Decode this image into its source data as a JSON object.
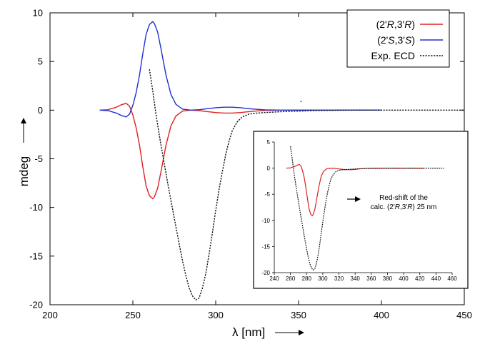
{
  "chart_data": [
    {
      "type": "line",
      "xlim": [
        200,
        450
      ],
      "ylim": [
        -20,
        10
      ],
      "xticks": [
        200,
        250,
        300,
        350,
        400,
        450
      ],
      "yticks": [
        10,
        5,
        0,
        -5,
        -10,
        -15,
        -20
      ],
      "xlabel": "λ [nm]",
      "ylabel": "mdeg",
      "grid": false,
      "legend": {
        "position": "top-right",
        "entries": [
          {
            "prefix": "(2'",
            "i1": "R",
            "mid": ",3'",
            "i2": "R",
            "suffix": ")",
            "color": "#e02020",
            "style": "solid"
          },
          {
            "prefix": "(2'",
            "i1": "S",
            "mid": ",3'",
            "i2": "S",
            "suffix": ")",
            "color": "#2030d0",
            "style": "solid"
          },
          {
            "text": "Exp. ECD",
            "color": "#111111",
            "style": "dotted"
          }
        ]
      },
      "series": [
        {
          "color": "#e02020",
          "style": "solid",
          "x": [
            230,
            235,
            240,
            243,
            246,
            248,
            250,
            252,
            254,
            256,
            258,
            260,
            262,
            263,
            265,
            267,
            270,
            273,
            276,
            280,
            285,
            290,
            295,
            300,
            305,
            310,
            315,
            320,
            325,
            330,
            340,
            360,
            400
          ],
          "y": [
            0,
            0.05,
            0.3,
            0.55,
            0.7,
            0.4,
            -0.5,
            -1.8,
            -3.6,
            -5.8,
            -7.8,
            -8.8,
            -9.1,
            -8.9,
            -8.0,
            -6.3,
            -3.6,
            -1.6,
            -0.6,
            -0.1,
            0,
            -0.05,
            -0.15,
            -0.25,
            -0.3,
            -0.3,
            -0.25,
            -0.15,
            -0.08,
            -0.03,
            0,
            0,
            0
          ]
        },
        {
          "color": "#2030d0",
          "style": "solid",
          "x": [
            230,
            235,
            240,
            243,
            246,
            248,
            250,
            252,
            254,
            256,
            258,
            260,
            262,
            263,
            265,
            267,
            270,
            273,
            276,
            280,
            285,
            290,
            295,
            300,
            305,
            310,
            315,
            320,
            325,
            330,
            340,
            360,
            400
          ],
          "y": [
            0,
            -0.05,
            -0.3,
            -0.55,
            -0.7,
            -0.4,
            0.5,
            1.8,
            3.6,
            5.8,
            7.8,
            8.8,
            9.1,
            8.9,
            8.0,
            6.3,
            3.6,
            1.6,
            0.6,
            0.1,
            0,
            0.05,
            0.15,
            0.25,
            0.3,
            0.3,
            0.25,
            0.15,
            0.08,
            0.03,
            0,
            0,
            0
          ]
        },
        {
          "color": "#111111",
          "style": "dotted",
          "x": [
            260,
            262,
            264,
            266,
            268,
            270,
            272,
            274,
            276,
            278,
            280,
            282,
            284,
            286,
            288,
            290,
            292,
            294,
            296,
            298,
            300,
            302,
            304,
            306,
            308,
            310,
            313,
            316,
            320,
            325,
            330,
            340,
            350,
            360,
            380,
            400,
            420,
            440,
            450
          ],
          "y": [
            4.2,
            2.0,
            -0.5,
            -2.6,
            -4.6,
            -6.5,
            -8.4,
            -10.2,
            -12.0,
            -13.8,
            -15.5,
            -17.0,
            -18.3,
            -19.1,
            -19.5,
            -19.3,
            -18.3,
            -16.8,
            -14.8,
            -12.6,
            -10.3,
            -8.2,
            -6.3,
            -4.6,
            -3.2,
            -2.1,
            -1.2,
            -0.7,
            -0.4,
            -0.3,
            -0.25,
            -0.15,
            -0.1,
            -0.05,
            0,
            0,
            0,
            0,
            0
          ]
        }
      ]
    },
    {
      "type": "line",
      "xlim": [
        240,
        460
      ],
      "ylim": [
        -20,
        5
      ],
      "xticks": [
        240,
        260,
        280,
        300,
        320,
        340,
        360,
        380,
        400,
        420,
        440,
        460
      ],
      "yticks": [
        5,
        0,
        -5,
        -10,
        -15,
        -20
      ],
      "grid": false,
      "annotation": {
        "line1": "Red-shift of the",
        "line2_prefix": "calc. (2'",
        "line2_i1": "R",
        "line2_mid": ",3'",
        "line2_i2": "R",
        "line2_suffix": ") 25 nm"
      },
      "series": [
        {
          "color": "#e02020",
          "style": "solid",
          "x": [
            255,
            260,
            265,
            268,
            271,
            273,
            275,
            277,
            279,
            281,
            283,
            285,
            287,
            288,
            290,
            292,
            295,
            298,
            301,
            305,
            310,
            315,
            320,
            325,
            330,
            335,
            340,
            345,
            350,
            355,
            365,
            385,
            425
          ],
          "y": [
            0,
            0.05,
            0.3,
            0.55,
            0.7,
            0.4,
            -0.5,
            -1.8,
            -3.6,
            -5.8,
            -7.8,
            -8.8,
            -9.1,
            -8.9,
            -8.0,
            -6.3,
            -3.6,
            -1.6,
            -0.6,
            -0.1,
            0,
            -0.05,
            -0.15,
            -0.25,
            -0.3,
            -0.3,
            -0.25,
            -0.15,
            -0.08,
            -0.03,
            0,
            0,
            0
          ]
        },
        {
          "color": "#111111",
          "style": "dotted",
          "x": [
            260,
            262,
            264,
            266,
            268,
            270,
            272,
            274,
            276,
            278,
            280,
            282,
            284,
            286,
            288,
            290,
            292,
            294,
            296,
            298,
            300,
            302,
            304,
            306,
            308,
            310,
            313,
            316,
            320,
            325,
            330,
            340,
            350,
            360,
            380,
            400,
            420,
            440,
            450
          ],
          "y": [
            4.2,
            2.0,
            -0.5,
            -2.6,
            -4.6,
            -6.5,
            -8.4,
            -10.2,
            -12.0,
            -13.8,
            -15.5,
            -17.0,
            -18.3,
            -19.1,
            -19.5,
            -19.3,
            -18.3,
            -16.8,
            -14.8,
            -12.6,
            -10.3,
            -8.2,
            -6.3,
            -4.6,
            -3.2,
            -2.1,
            -1.2,
            -0.7,
            -0.4,
            -0.3,
            -0.25,
            -0.15,
            -0.1,
            -0.05,
            0,
            0,
            0,
            0,
            0
          ]
        }
      ]
    }
  ]
}
